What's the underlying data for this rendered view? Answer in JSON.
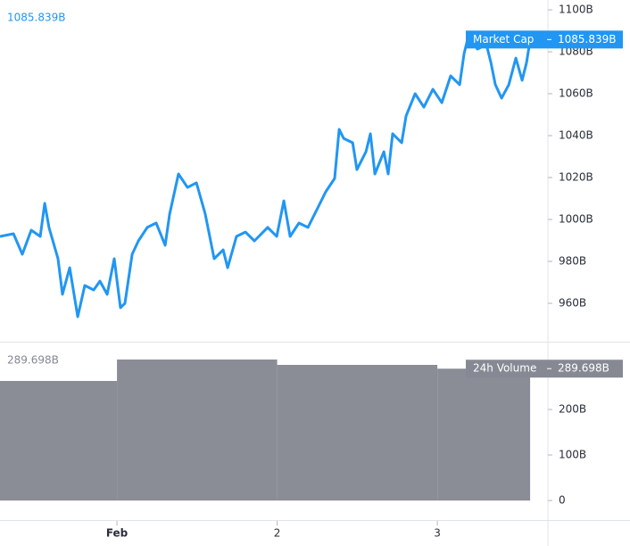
{
  "chart_data": [
    {
      "type": "line",
      "x": [
        0.27,
        0.354,
        0.409,
        0.465,
        0.521,
        0.549,
        0.576,
        0.632,
        0.66,
        0.705,
        0.755,
        0.799,
        0.855,
        0.894,
        0.939,
        0.983,
        1.022,
        1.05,
        1.095,
        1.134,
        1.189,
        1.245,
        1.301,
        1.329,
        1.384,
        1.44,
        1.496,
        1.551,
        1.607,
        1.663,
        1.691,
        1.746,
        1.802,
        1.858,
        1.941,
        1.997,
        2.042,
        2.081,
        2.136,
        2.192,
        2.248,
        2.303,
        2.359,
        2.387,
        2.415,
        2.471,
        2.498,
        2.554,
        2.582,
        2.61,
        2.666,
        2.693,
        2.721,
        2.777,
        2.805,
        2.861,
        2.916,
        2.972,
        3.028,
        3.083,
        3.139,
        3.167,
        3.195,
        3.25,
        3.306,
        3.334,
        3.362,
        3.401,
        3.446,
        3.49,
        3.529,
        3.557,
        3.579
      ],
      "series": [
        {
          "name": "Market Cap",
          "color": "#2196f3",
          "values": [
            991.9,
            993.2,
            983.4,
            994.9,
            991.9,
            1007.7,
            996.2,
            981.3,
            964.3,
            977.0,
            953.6,
            968.5,
            966.4,
            970.6,
            964.3,
            981.3,
            957.9,
            960.0,
            983.4,
            989.8,
            996.2,
            998.3,
            987.7,
            1002.6,
            1021.7,
            1015.3,
            1017.5,
            1002.6,
            981.3,
            985.5,
            977.0,
            991.9,
            994.0,
            989.8,
            996.2,
            991.9,
            1008.9,
            991.9,
            998.3,
            996.2,
            1004.7,
            1013.2,
            1019.6,
            1043.0,
            1038.7,
            1036.6,
            1023.8,
            1032.3,
            1040.9,
            1021.7,
            1032.3,
            1021.7,
            1040.9,
            1036.6,
            1049.4,
            1060.0,
            1053.6,
            1062.1,
            1055.7,
            1068.5,
            1064.3,
            1079.2,
            1087.7,
            1081.3,
            1083.4,
            1074.9,
            1064.3,
            1057.9,
            1064.3,
            1077.0,
            1066.4,
            1074.9,
            1085.839
          ]
        }
      ],
      "last_value_label": "1085.839B",
      "xlim": [
        0.27,
        3.69
      ],
      "ylim": [
        941.7,
        1104.7
      ],
      "yticks": [
        {
          "value": 960,
          "label": "960B"
        },
        {
          "value": 980,
          "label": "980B"
        },
        {
          "value": 1000,
          "label": "1000B"
        },
        {
          "value": 1020,
          "label": "1020B"
        },
        {
          "value": 1040,
          "label": "1040B"
        },
        {
          "value": 1060,
          "label": "1060B"
        },
        {
          "value": 1080,
          "label": "1080B"
        },
        {
          "value": 1100,
          "label": "1100B"
        }
      ],
      "grid": false
    },
    {
      "type": "bar",
      "series": [
        {
          "name": "24h Volume",
          "color": "#8a8d96",
          "bins": [
            0.27,
            1.0,
            2.0,
            3.0,
            3.579
          ],
          "values": [
            262.7,
            309.8,
            298.0,
            289.698
          ]
        }
      ],
      "last_value_label": "289.698B",
      "xlim": [
        0.27,
        3.69
      ],
      "ylim": [
        -43.1,
        347
      ],
      "yticks": [
        0,
        {
          "value": 100,
          "label": "100B"
        },
        {
          "value": 200,
          "label": "200B"
        }
      ],
      "xticks": [
        {
          "value": 1,
          "label": "Feb"
        },
        2,
        3
      ],
      "grid": false
    }
  ]
}
